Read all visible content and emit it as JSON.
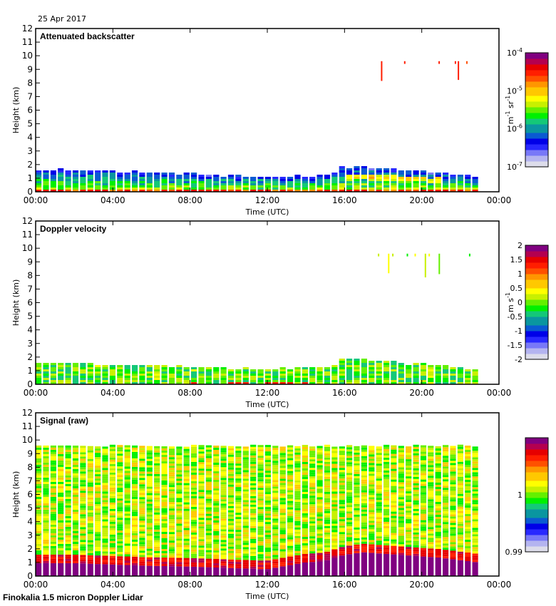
{
  "header": {
    "date": "25 Apr 2017"
  },
  "footer": {
    "instrument": "Finokalia 1.5 micron Doppler Lidar"
  },
  "colors": {
    "colormap": [
      "#dcdcea",
      "#b4b4f0",
      "#7878f8",
      "#2828ff",
      "#0000e8",
      "#0a5ad2",
      "#0a96a0",
      "#14c878",
      "#00f000",
      "#64f000",
      "#c8f000",
      "#ffff00",
      "#ffc800",
      "#ff9600",
      "#ff5000",
      "#ff1e00",
      "#e60000",
      "#b40050",
      "#800080"
    ],
    "purple": "#800080"
  },
  "chart_data": [
    {
      "type": "heatmap",
      "id": "backscatter",
      "title": "Attenuated backscatter",
      "xlabel": "Time (UTC)",
      "ylabel": "Height (km)",
      "xlim": [
        0,
        24
      ],
      "ylim": [
        0,
        12
      ],
      "x_ticks": [
        "00:00",
        "04:00",
        "08:00",
        "12:00",
        "16:00",
        "20:00",
        "00:00"
      ],
      "y_ticks": [
        "0",
        "1",
        "2",
        "3",
        "4",
        "5",
        "6",
        "7",
        "8",
        "9",
        "10",
        "11",
        "12"
      ],
      "colorbar": {
        "label": "m-1 sr-1",
        "label_parts": [
          "m",
          "-1",
          " sr",
          "-1"
        ],
        "scale": "log",
        "range": [
          1e-07,
          0.0001
        ],
        "ticks": [
          {
            "base": "10",
            "exp": "-4",
            "value": -4
          },
          {
            "base": "10",
            "exp": "-5",
            "value": -5
          },
          {
            "base": "10",
            "exp": "-6",
            "value": -6
          },
          {
            "base": "10",
            "exp": "-7",
            "value": -7
          }
        ]
      },
      "data_end_hour": 23.0,
      "boundary_layer_top_km": [
        [
          0,
          1.4
        ],
        [
          1,
          1.6
        ],
        [
          2,
          1.5
        ],
        [
          4,
          1.4
        ],
        [
          6,
          1.35
        ],
        [
          8,
          1.25
        ],
        [
          10,
          1.1
        ],
        [
          12,
          1.05
        ],
        [
          14,
          1.1
        ],
        [
          15.5,
          1.2
        ],
        [
          15.6,
          1.8
        ],
        [
          17,
          1.75
        ],
        [
          18,
          1.6
        ],
        [
          20,
          1.4
        ],
        [
          22,
          1.2
        ],
        [
          23,
          1.0
        ]
      ],
      "cirrus_km": [
        9.3,
        9.6
      ],
      "cirrus_hours": [
        17.5,
        22.5
      ]
    },
    {
      "type": "heatmap",
      "id": "doppler",
      "title": "Doppler velocity",
      "xlabel": "Time (UTC)",
      "ylabel": "Height (km)",
      "xlim": [
        0,
        24
      ],
      "ylim": [
        0,
        12
      ],
      "x_ticks": [
        "00:00",
        "04:00",
        "08:00",
        "12:00",
        "16:00",
        "20:00",
        "00:00"
      ],
      "y_ticks": [
        "0",
        "1",
        "2",
        "3",
        "4",
        "5",
        "6",
        "7",
        "8",
        "9",
        "10",
        "11",
        "12"
      ],
      "colorbar": {
        "label": "m s-1",
        "label_parts": [
          "m s",
          "-1"
        ],
        "scale": "linear",
        "range": [
          -2,
          2
        ],
        "ticks": [
          "2",
          "1.5",
          "1",
          "0.5",
          "0",
          "-0.5",
          "-1",
          "-1.5",
          "-2"
        ]
      },
      "data_end_hour": 23.0
    },
    {
      "type": "heatmap",
      "id": "signal",
      "title": "Signal (raw)",
      "xlabel": "Time (UTC)",
      "ylabel": "Height (km)",
      "xlim": [
        0,
        24
      ],
      "ylim": [
        0,
        12
      ],
      "x_ticks": [
        "00:00",
        "04:00",
        "08:00",
        "12:00",
        "16:00",
        "20:00",
        "00:00"
      ],
      "y_ticks": [
        "0",
        "1",
        "2",
        "3",
        "4",
        "5",
        "6",
        "7",
        "8",
        "9",
        "10",
        "11",
        "12"
      ],
      "colorbar": {
        "label": "",
        "scale": "linear",
        "range": [
          0.99,
          1.01
        ],
        "ticks": [
          "1",
          "0.99"
        ]
      },
      "data_end_hour": 23.0,
      "data_top_km": 9.5,
      "saturated_top_km": [
        [
          0,
          0.95
        ],
        [
          2,
          0.95
        ],
        [
          4,
          0.85
        ],
        [
          6,
          0.75
        ],
        [
          8,
          0.7
        ],
        [
          10,
          0.6
        ],
        [
          12,
          0.5
        ],
        [
          14,
          1.0
        ],
        [
          15,
          1.1
        ],
        [
          16,
          1.55
        ],
        [
          17,
          1.75
        ],
        [
          19,
          1.55
        ],
        [
          21,
          1.35
        ],
        [
          23,
          1.0
        ]
      ]
    }
  ]
}
